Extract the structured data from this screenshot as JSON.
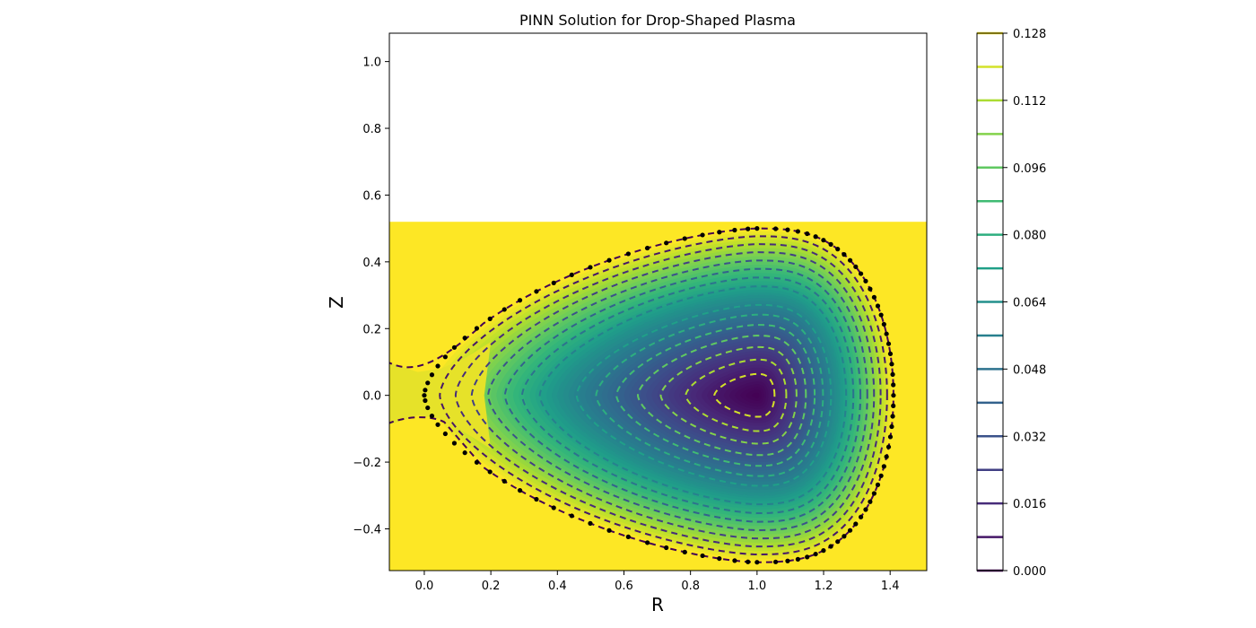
{
  "chart_data": {
    "type": "heatmap",
    "title": "PINN Solution for Drop-Shaped Plasma",
    "xlabel": "R",
    "ylabel": "Z",
    "xlim": [
      -0.105,
      1.51
    ],
    "ylim": [
      -0.525,
      1.085
    ],
    "field_ylim": [
      -0.525,
      0.52
    ],
    "x_ticks": [
      0.0,
      0.2,
      0.4,
      0.6,
      0.8,
      1.0,
      1.2,
      1.4
    ],
    "x_tick_labels": [
      "0.0",
      "0.2",
      "0.4",
      "0.6",
      "0.8",
      "1.0",
      "1.2",
      "1.4"
    ],
    "y_ticks": [
      -0.4,
      -0.2,
      0.0,
      0.2,
      0.4,
      0.6,
      0.8,
      1.0
    ],
    "y_tick_labels": [
      "−0.4",
      "−0.2",
      "0.0",
      "0.2",
      "0.4",
      "0.6",
      "0.8",
      "1.0"
    ],
    "colormap": "viridis",
    "colorbar": {
      "vmin": 0.0,
      "vmax": 0.128,
      "ticks": [
        0.0,
        0.016,
        0.032,
        0.048,
        0.064,
        0.08,
        0.096,
        0.112,
        0.128
      ],
      "tick_labels": [
        "0.000",
        "0.016",
        "0.032",
        "0.048",
        "0.064",
        "0.080",
        "0.096",
        "0.112",
        "0.128"
      ],
      "contour_levels": [
        0.0,
        0.008,
        0.016,
        0.024,
        0.032,
        0.04,
        0.048,
        0.056,
        0.064,
        0.072,
        0.08,
        0.088,
        0.096,
        0.104,
        0.112,
        0.12,
        0.128
      ]
    },
    "contour_level_count": 17,
    "boundary_point_count": 100,
    "magnetic_axis": [
      1.0,
      0.0
    ],
    "background_color": "#fde725"
  }
}
